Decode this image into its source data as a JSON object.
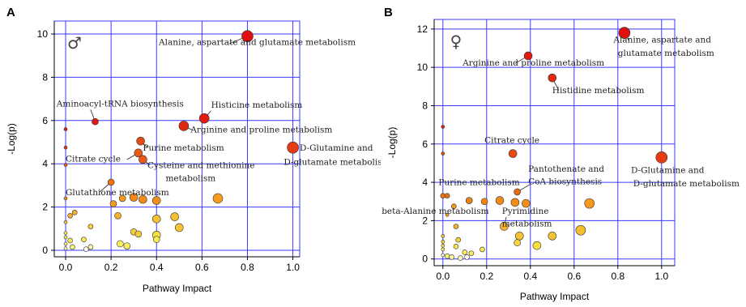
{
  "chart_data": [
    {
      "type": "scatter",
      "panel_label": "A",
      "sex_symbol": "♂",
      "xlabel": "Pathway Impact",
      "ylabel": "-Log(p)",
      "xlim": [
        -0.05,
        1.03
      ],
      "ylim": [
        -0.3,
        10.6
      ],
      "xticks": [
        "0.0",
        "0.2",
        "0.4",
        "0.6",
        "0.8",
        "1.0"
      ],
      "xtick_values": [
        0,
        0.2,
        0.4,
        0.6,
        0.8,
        1.0
      ],
      "yticks": [
        "0",
        "2",
        "4",
        "6",
        "8",
        "10"
      ],
      "ytick_values": [
        0,
        2,
        4,
        6,
        8,
        10
      ],
      "grid": true,
      "points": [
        {
          "x": 0.8,
          "y": 9.9,
          "size": 7,
          "color": "#e01010"
        },
        {
          "x": 0.61,
          "y": 6.1,
          "size": 6,
          "color": "#e01a10"
        },
        {
          "x": 0.52,
          "y": 5.75,
          "size": 6,
          "color": "#e02a10"
        },
        {
          "x": 0.13,
          "y": 5.95,
          "size": 4,
          "color": "#e01a10"
        },
        {
          "x": 1.0,
          "y": 4.75,
          "size": 7,
          "color": "#e53a14"
        },
        {
          "x": 0.33,
          "y": 5.05,
          "size": 5,
          "color": "#e84a14"
        },
        {
          "x": 0.32,
          "y": 4.5,
          "size": 5,
          "color": "#ea5a14"
        },
        {
          "x": 0.34,
          "y": 4.2,
          "size": 5,
          "color": "#ea5a14"
        },
        {
          "x": 0.2,
          "y": 3.15,
          "size": 4,
          "color": "#ee7214"
        },
        {
          "x": 0.67,
          "y": 2.4,
          "size": 6,
          "color": "#f59a1e"
        },
        {
          "x": 0.3,
          "y": 2.45,
          "size": 5,
          "color": "#f18a1a"
        },
        {
          "x": 0.34,
          "y": 2.35,
          "size": 5,
          "color": "#f18a1a"
        },
        {
          "x": 0.4,
          "y": 2.3,
          "size": 5,
          "color": "#f28e1a"
        },
        {
          "x": 0.21,
          "y": 2.15,
          "size": 4,
          "color": "#f29a1e"
        },
        {
          "x": 0.25,
          "y": 2.4,
          "size": 4,
          "color": "#f29a1e"
        },
        {
          "x": 0.0,
          "y": 5.6,
          "size": 2,
          "color": "#e02010"
        },
        {
          "x": 0.0,
          "y": 4.75,
          "size": 2,
          "color": "#e53a14"
        },
        {
          "x": 0.0,
          "y": 3.95,
          "size": 2,
          "color": "#e86014"
        },
        {
          "x": 0.0,
          "y": 2.4,
          "size": 2,
          "color": "#f08a1a"
        },
        {
          "x": 0.02,
          "y": 1.6,
          "size": 3,
          "color": "#f5b030"
        },
        {
          "x": 0.04,
          "y": 1.75,
          "size": 3,
          "color": "#f5b030"
        },
        {
          "x": 0.0,
          "y": 1.3,
          "size": 2,
          "color": "#f6c040"
        },
        {
          "x": 0.23,
          "y": 1.6,
          "size": 4,
          "color": "#f5b030"
        },
        {
          "x": 0.48,
          "y": 1.55,
          "size": 5,
          "color": "#f5c030"
        },
        {
          "x": 0.4,
          "y": 1.45,
          "size": 5,
          "color": "#f5c232"
        },
        {
          "x": 0.5,
          "y": 1.05,
          "size": 5,
          "color": "#f5c432"
        },
        {
          "x": 0.3,
          "y": 0.85,
          "size": 4,
          "color": "#f5cc40"
        },
        {
          "x": 0.32,
          "y": 0.75,
          "size": 4,
          "color": "#f5cc40"
        },
        {
          "x": 0.11,
          "y": 1.1,
          "size": 3,
          "color": "#f6d040"
        },
        {
          "x": 0.4,
          "y": 0.7,
          "size": 5,
          "color": "#f7e040"
        },
        {
          "x": 0.4,
          "y": 0.5,
          "size": 4,
          "color": "#f9ea50"
        },
        {
          "x": 0.24,
          "y": 0.3,
          "size": 4,
          "color": "#fbf060"
        },
        {
          "x": 0.27,
          "y": 0.2,
          "size": 4,
          "color": "#fbf060"
        },
        {
          "x": 0.08,
          "y": 0.5,
          "size": 3,
          "color": "#f9ea50"
        },
        {
          "x": 0.0,
          "y": 0.8,
          "size": 2,
          "color": "#f8e050"
        },
        {
          "x": 0.0,
          "y": 0.6,
          "size": 2,
          "color": "#f8e050"
        },
        {
          "x": 0.02,
          "y": 0.45,
          "size": 3,
          "color": "#faec60"
        },
        {
          "x": 0.0,
          "y": 0.3,
          "size": 2,
          "color": "#fbf070"
        },
        {
          "x": 0.03,
          "y": 0.15,
          "size": 3,
          "color": "#fcf480"
        },
        {
          "x": 0.11,
          "y": 0.15,
          "size": 3,
          "color": "#fdf8a0"
        },
        {
          "x": 0.0,
          "y": 0.08,
          "size": 2,
          "color": "#fef8c0"
        },
        {
          "x": 0.09,
          "y": 0.05,
          "size": 3,
          "color": "#fffdf0"
        }
      ],
      "annotations": [
        {
          "text": "Alanine, aspartate and glutamate metabolism",
          "x": 0.41,
          "y": 9.5
        },
        {
          "text": "Aminoacyl-tRNA biosynthesis",
          "x": -0.04,
          "y": 6.65
        },
        {
          "text": "Histicine metabolism",
          "x": 0.64,
          "y": 6.6
        },
        {
          "text": "Arginine and proline metabolism",
          "x": 0.55,
          "y": 5.45
        },
        {
          "text": "Purine metabolism",
          "x": 0.34,
          "y": 4.6
        },
        {
          "text": "D-Glutamine and",
          "x": 1.03,
          "y": 4.6
        },
        {
          "text": "D-glutamate metabolism",
          "x": 0.96,
          "y": 3.95
        },
        {
          "text": "Citrate cycle",
          "x": 0.0,
          "y": 4.1
        },
        {
          "text": "Cysteine and methionine",
          "x": 0.36,
          "y": 3.8
        },
        {
          "text": "metabolism",
          "x": 0.44,
          "y": 3.2
        },
        {
          "text": "Glutathione metabolism",
          "x": 0.0,
          "y": 2.55
        }
      ]
    },
    {
      "type": "scatter",
      "panel_label": "B",
      "sex_symbol": "♀",
      "xlabel": "Pathway Impact",
      "ylabel": "-Log(p)",
      "xlim": [
        -0.04,
        1.06
      ],
      "ylim": [
        -0.35,
        12.5
      ],
      "xticks": [
        "0.0",
        "0.2",
        "0.4",
        "0.6",
        "0.8",
        "1.0"
      ],
      "xtick_values": [
        0,
        0.2,
        0.4,
        0.6,
        0.8,
        1.0
      ],
      "yticks": [
        "0",
        "2",
        "4",
        "6",
        "8",
        "10",
        "12"
      ],
      "ytick_values": [
        0,
        2,
        4,
        6,
        8,
        10,
        12
      ],
      "grid": true,
      "points": [
        {
          "x": 0.83,
          "y": 11.8,
          "size": 7,
          "color": "#e01010"
        },
        {
          "x": 0.39,
          "y": 10.6,
          "size": 5,
          "color": "#e01a10"
        },
        {
          "x": 0.5,
          "y": 9.45,
          "size": 5,
          "color": "#e02a10"
        },
        {
          "x": 1.0,
          "y": 5.3,
          "size": 7,
          "color": "#e63c14"
        },
        {
          "x": 0.32,
          "y": 5.5,
          "size": 5,
          "color": "#e84a14"
        },
        {
          "x": 0.0,
          "y": 6.9,
          "size": 2,
          "color": "#e02010"
        },
        {
          "x": 0.0,
          "y": 5.5,
          "size": 2,
          "color": "#e84a14"
        },
        {
          "x": 0.34,
          "y": 3.5,
          "size": 4,
          "color": "#ec6a14"
        },
        {
          "x": 0.0,
          "y": 3.3,
          "size": 3,
          "color": "#ee7214"
        },
        {
          "x": 0.02,
          "y": 3.3,
          "size": 3,
          "color": "#ee7214"
        },
        {
          "x": 0.12,
          "y": 3.05,
          "size": 4,
          "color": "#f08214"
        },
        {
          "x": 0.19,
          "y": 3.0,
          "size": 4,
          "color": "#f08214"
        },
        {
          "x": 0.26,
          "y": 3.05,
          "size": 5,
          "color": "#f08a1a"
        },
        {
          "x": 0.33,
          "y": 2.95,
          "size": 5,
          "color": "#f18e1a"
        },
        {
          "x": 0.38,
          "y": 2.9,
          "size": 5,
          "color": "#f18e1a"
        },
        {
          "x": 0.67,
          "y": 2.9,
          "size": 6,
          "color": "#f59a1e"
        },
        {
          "x": 0.05,
          "y": 2.75,
          "size": 3,
          "color": "#f29a1e"
        },
        {
          "x": 0.02,
          "y": 2.3,
          "size": 2,
          "color": "#f2a020"
        },
        {
          "x": 0.06,
          "y": 1.7,
          "size": 3,
          "color": "#f5b030"
        },
        {
          "x": 0.28,
          "y": 1.7,
          "size": 5,
          "color": "#f5b030"
        },
        {
          "x": 0.63,
          "y": 1.5,
          "size": 6,
          "color": "#f5bc30"
        },
        {
          "x": 0.5,
          "y": 1.2,
          "size": 5,
          "color": "#f5c432"
        },
        {
          "x": 0.35,
          "y": 1.2,
          "size": 5,
          "color": "#f5c432"
        },
        {
          "x": 0.34,
          "y": 0.85,
          "size": 4,
          "color": "#f7d640"
        },
        {
          "x": 0.43,
          "y": 0.7,
          "size": 5,
          "color": "#f9e040"
        },
        {
          "x": 0.07,
          "y": 1.0,
          "size": 3,
          "color": "#f7d040"
        },
        {
          "x": 0.06,
          "y": 0.65,
          "size": 3,
          "color": "#f9e450"
        },
        {
          "x": 0.1,
          "y": 0.35,
          "size": 3,
          "color": "#faec60"
        },
        {
          "x": 0.13,
          "y": 0.3,
          "size": 3,
          "color": "#faec60"
        },
        {
          "x": 0.18,
          "y": 0.5,
          "size": 3,
          "color": "#f9ea50"
        },
        {
          "x": 0.0,
          "y": 1.2,
          "size": 2,
          "color": "#f6c040"
        },
        {
          "x": 0.0,
          "y": 0.9,
          "size": 2,
          "color": "#f8d040"
        },
        {
          "x": 0.0,
          "y": 0.7,
          "size": 2,
          "color": "#f8e050"
        },
        {
          "x": 0.0,
          "y": 0.5,
          "size": 2,
          "color": "#faec60"
        },
        {
          "x": 0.02,
          "y": 0.15,
          "size": 3,
          "color": "#fcf480"
        },
        {
          "x": 0.04,
          "y": 0.1,
          "size": 3,
          "color": "#fdf8a0"
        },
        {
          "x": 0.08,
          "y": 0.05,
          "size": 3,
          "color": "#fef8c0"
        },
        {
          "x": 0.11,
          "y": 0.1,
          "size": 3,
          "color": "#fffdf0"
        },
        {
          "x": 0.0,
          "y": 0.2,
          "size": 2,
          "color": "#fef8c0"
        }
      ],
      "annotations": [
        {
          "text": "Alanine, aspartate and",
          "x": 0.78,
          "y": 11.3
        },
        {
          "text": "glutamate metabolism",
          "x": 0.8,
          "y": 10.6
        },
        {
          "text": "Arginine and proline metabolism",
          "x": 0.09,
          "y": 10.1
        },
        {
          "text": "Histidine metabolism",
          "x": 0.5,
          "y": 8.65
        },
        {
          "text": "Citrate cycle",
          "x": 0.19,
          "y": 6.05
        },
        {
          "text": "Pantothenate and",
          "x": 0.39,
          "y": 4.55
        },
        {
          "text": "CoA biosynthesis",
          "x": 0.39,
          "y": 3.9
        },
        {
          "text": "Purine metabolism",
          "x": -0.02,
          "y": 3.85
        },
        {
          "text": "D-Glutamine and",
          "x": 0.86,
          "y": 4.5
        },
        {
          "text": "D-glutamate metabolism",
          "x": 0.87,
          "y": 3.8
        },
        {
          "text": "beta-Alanine metabolism",
          "x": -0.28,
          "y": 2.35
        },
        {
          "text": "Pyrimidine",
          "x": 0.27,
          "y": 2.35
        },
        {
          "text": "metabolism",
          "x": 0.27,
          "y": 1.7
        }
      ]
    }
  ]
}
